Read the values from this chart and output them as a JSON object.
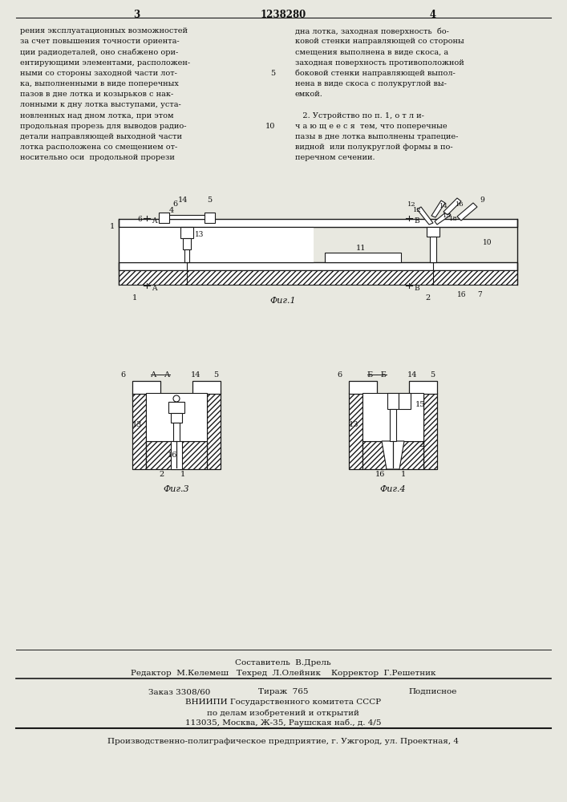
{
  "page_width": 7.07,
  "page_height": 10.0,
  "bg_color": "#e8e8e0",
  "text_color": "#111111",
  "col1_text": [
    "рения эксплуатационных возможностей",
    "за счет повышения точности ориента-",
    "ции радиодеталей, оно снабжено ори-",
    "ентирующими элементами, расположен-",
    "ными со стороны заходной части лот-",
    "ка, выполненными в виде поперечных",
    "пазов в дне лотка и козырьков с нак-",
    "лонными к дну лотка выступами, уста-",
    "новленных над дном лотка, при этом",
    "продольная прорезь для выводов радио-",
    "детали направляющей выходной части",
    "лотка расположена со смещением от-",
    "носительно оси  продольной прорези"
  ],
  "col1_lineno": [
    null,
    null,
    null,
    null,
    "5",
    null,
    null,
    null,
    null,
    "10",
    null,
    null,
    null
  ],
  "col2_text": [
    "дна лотка, заходная поверхность  бо-",
    "ковой стенки направляющей со стороны",
    "смещения выполнена в виде скоса, а",
    "заходная поверхность противоположной",
    "боковой стенки направляющей выпол-",
    "нена в виде скоса с полукруглой вы-",
    "емкой.",
    "",
    "   2. Устройство по п. 1, о т л и-",
    "ч а ю щ е е с я  тем, что поперечные",
    "пазы в дне лотка выполнены трапецие-",
    "видной  или полукруглой формы в по-",
    "перечном сечении."
  ],
  "footer_line1": "Составитель  В.Дрель",
  "footer_line2": "Редактор  М.Келемеш   Техред  Л.Олейник    Корректор  Г.Решетник",
  "footer_line3": "Заказ 3308/60        Тираж  765         Подписное",
  "footer_line4": "ВНИИПИ Государственного комитета СССР",
  "footer_line5": "по делам изобретений и открытий",
  "footer_line6": "113035, Москва, Ж-35, Раушская наб., д. 4/5",
  "footer_line7": "Производственно-полиграфическое предприятие, г. Ужгород, ул. Проектная, 4",
  "line_color": "#1a1a1a"
}
